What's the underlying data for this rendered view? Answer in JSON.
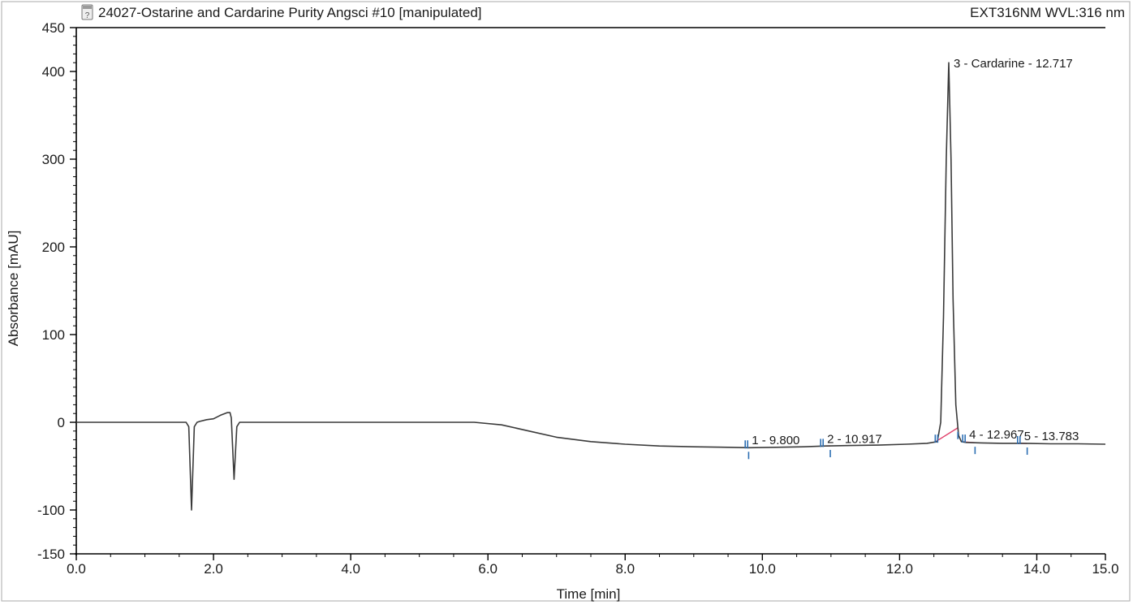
{
  "window": {
    "title": "24027-Ostarine and Cardarine Purity Angsci #10 [manipulated]",
    "channel": "EXT316NM WVL:316 nm",
    "doc_icon": "chromatogram-document-icon"
  },
  "chart_data": {
    "type": "line",
    "xlabel": "Time [min]",
    "ylabel": "Absorbance [mAU]",
    "xlim": [
      0,
      15
    ],
    "ylim": [
      -150,
      450
    ],
    "x_ticks": [
      {
        "v": 0,
        "label": "0.0"
      },
      {
        "v": 2,
        "label": "2.0"
      },
      {
        "v": 4,
        "label": "4.0"
      },
      {
        "v": 6,
        "label": "6.0"
      },
      {
        "v": 8,
        "label": "8.0"
      },
      {
        "v": 10,
        "label": "10.0"
      },
      {
        "v": 12,
        "label": "12.0"
      },
      {
        "v": 14,
        "label": "14.0"
      },
      {
        "v": 15,
        "label": "15.0"
      }
    ],
    "y_ticks": [
      {
        "v": 450,
        "label": "450"
      },
      {
        "v": 400,
        "label": "400"
      },
      {
        "v": 300,
        "label": "300"
      },
      {
        "v": 200,
        "label": "200"
      },
      {
        "v": 100,
        "label": "100"
      },
      {
        "v": 0,
        "label": "0"
      },
      {
        "v": -100,
        "label": "-100"
      },
      {
        "v": -150,
        "label": "-150"
      }
    ],
    "trace": [
      [
        0.0,
        0
      ],
      [
        1.4,
        0
      ],
      [
        1.6,
        0
      ],
      [
        1.64,
        -5
      ],
      [
        1.68,
        -100
      ],
      [
        1.72,
        -5
      ],
      [
        1.76,
        0
      ],
      [
        1.8,
        1
      ],
      [
        1.9,
        3
      ],
      [
        2.0,
        4
      ],
      [
        2.1,
        8
      ],
      [
        2.2,
        11
      ],
      [
        2.24,
        11
      ],
      [
        2.26,
        5
      ],
      [
        2.3,
        -65
      ],
      [
        2.34,
        -5
      ],
      [
        2.38,
        0
      ],
      [
        3.0,
        0
      ],
      [
        4.0,
        0
      ],
      [
        5.0,
        0
      ],
      [
        5.8,
        0
      ],
      [
        6.2,
        -3
      ],
      [
        6.6,
        -10
      ],
      [
        7.0,
        -17
      ],
      [
        7.5,
        -22
      ],
      [
        8.0,
        -25
      ],
      [
        8.5,
        -27
      ],
      [
        9.0,
        -28
      ],
      [
        9.5,
        -28.5
      ],
      [
        9.8,
        -29
      ],
      [
        10.2,
        -28.5
      ],
      [
        10.6,
        -28
      ],
      [
        10.917,
        -27
      ],
      [
        11.3,
        -26.5
      ],
      [
        11.7,
        -26
      ],
      [
        12.1,
        -25
      ],
      [
        12.4,
        -24
      ],
      [
        12.55,
        -22
      ],
      [
        12.6,
        0
      ],
      [
        12.64,
        120
      ],
      [
        12.68,
        300
      ],
      [
        12.717,
        410
      ],
      [
        12.75,
        300
      ],
      [
        12.78,
        140
      ],
      [
        12.82,
        20
      ],
      [
        12.86,
        -15
      ],
      [
        12.9,
        -22
      ],
      [
        12.967,
        -23
      ],
      [
        13.2,
        -23.5
      ],
      [
        13.5,
        -24
      ],
      [
        13.783,
        -24
      ],
      [
        14.2,
        -24.5
      ],
      [
        14.6,
        -24.5
      ],
      [
        15.0,
        -25
      ]
    ],
    "peaks": [
      {
        "number": 1,
        "rt": 9.8,
        "label": "1 - 9.800",
        "start": 9.75,
        "end": 9.8
      },
      {
        "number": 2,
        "rt": 10.917,
        "label": "2 - 10.917",
        "start": 10.85,
        "end": 10.99
      },
      {
        "number": 3,
        "rt": 12.717,
        "label": "3 - Cardarine - 12.717",
        "start": 12.52,
        "end": 12.85
      },
      {
        "number": 4,
        "rt": 12.967,
        "label": "4 - 12.967",
        "start": 12.92,
        "end": 13.1
      },
      {
        "number": 5,
        "rt": 13.783,
        "label": "5 - 13.783",
        "start": 13.72,
        "end": 13.86
      }
    ],
    "colors": {
      "trace": "#3a3a3a",
      "baseline": "#e0406a",
      "integration_marker": "#2d6fb3",
      "end_marker": "#8a1d4a",
      "axis": "#000000",
      "frame": "#b8b8b8"
    }
  }
}
